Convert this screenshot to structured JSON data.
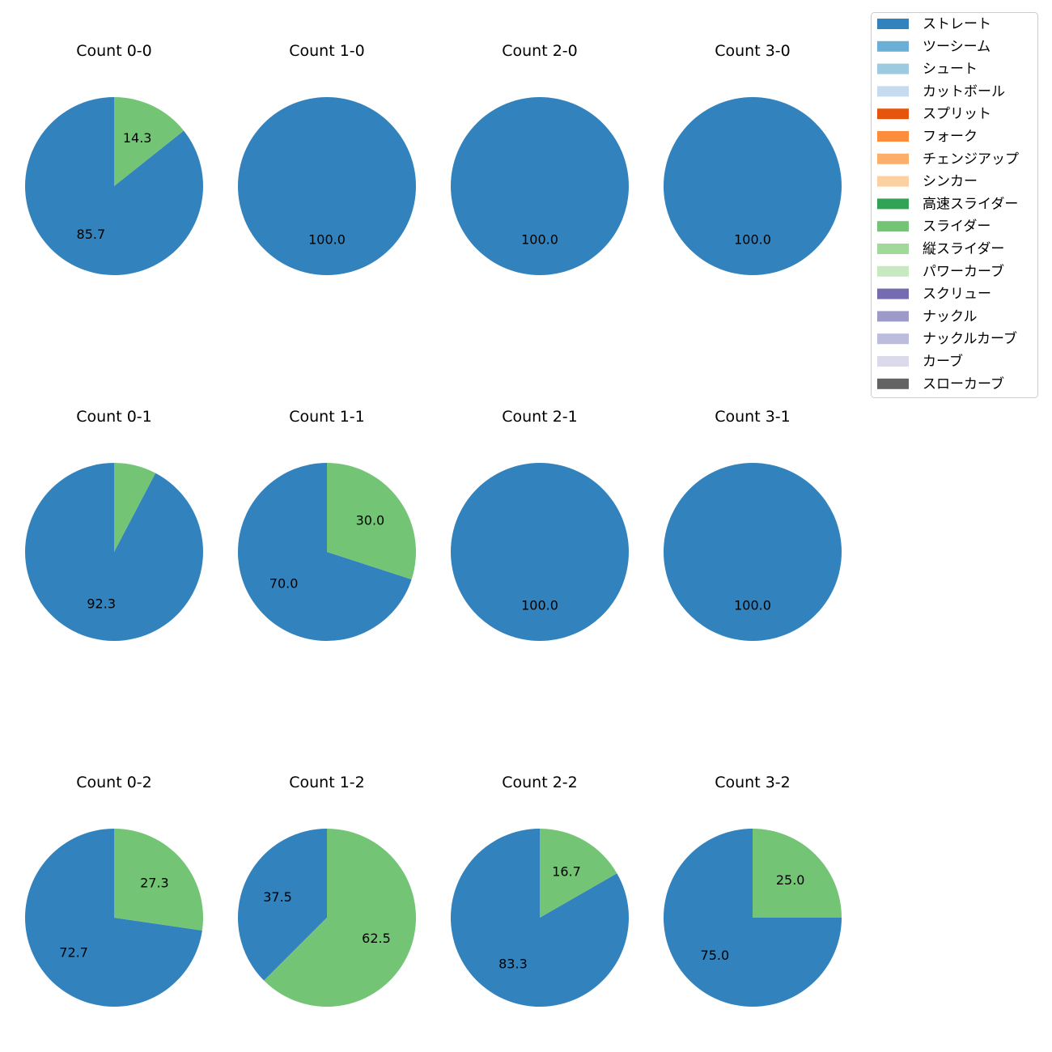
{
  "legend": {
    "items": [
      {
        "label": "ストレート",
        "color": "#3182bd"
      },
      {
        "label": "ツーシーム",
        "color": "#6baed6"
      },
      {
        "label": "シュート",
        "color": "#9ecae1"
      },
      {
        "label": "カットボール",
        "color": "#c6dbef"
      },
      {
        "label": "スプリット",
        "color": "#e6550d"
      },
      {
        "label": "フォーク",
        "color": "#fd8d3c"
      },
      {
        "label": "チェンジアップ",
        "color": "#fdae6b"
      },
      {
        "label": "シンカー",
        "color": "#fdd0a2"
      },
      {
        "label": "高速スライダー",
        "color": "#31a354"
      },
      {
        "label": "スライダー",
        "color": "#74c476"
      },
      {
        "label": "縦スライダー",
        "color": "#a1d99b"
      },
      {
        "label": "パワーカーブ",
        "color": "#c7e9c0"
      },
      {
        "label": "スクリュー",
        "color": "#756bb1"
      },
      {
        "label": "ナックル",
        "color": "#9e9ac8"
      },
      {
        "label": "ナックルカーブ",
        "color": "#bcbddc"
      },
      {
        "label": "カーブ",
        "color": "#dadaeb"
      },
      {
        "label": "スローカーブ",
        "color": "#636363"
      }
    ]
  },
  "chart_data": [
    {
      "type": "pie",
      "title": "Count 0-0",
      "slices": [
        {
          "label": "ストレート",
          "value": 85.7,
          "color": "#3182bd",
          "text": "85.7"
        },
        {
          "label": "スライダー",
          "value": 14.3,
          "color": "#74c476",
          "text": "14.3"
        }
      ]
    },
    {
      "type": "pie",
      "title": "Count 1-0",
      "slices": [
        {
          "label": "ストレート",
          "value": 100.0,
          "color": "#3182bd",
          "text": "100.0"
        }
      ]
    },
    {
      "type": "pie",
      "title": "Count 2-0",
      "slices": [
        {
          "label": "ストレート",
          "value": 100.0,
          "color": "#3182bd",
          "text": "100.0"
        }
      ]
    },
    {
      "type": "pie",
      "title": "Count 3-0",
      "slices": [
        {
          "label": "ストレート",
          "value": 100.0,
          "color": "#3182bd",
          "text": "100.0"
        }
      ]
    },
    {
      "type": "pie",
      "title": "Count 0-1",
      "slices": [
        {
          "label": "ストレート",
          "value": 92.3,
          "color": "#3182bd",
          "text": "92.3"
        },
        {
          "label": "スライダー",
          "value": 7.7,
          "color": "#74c476",
          "text": ""
        }
      ]
    },
    {
      "type": "pie",
      "title": "Count 1-1",
      "slices": [
        {
          "label": "ストレート",
          "value": 70.0,
          "color": "#3182bd",
          "text": "70.0"
        },
        {
          "label": "スライダー",
          "value": 30.0,
          "color": "#74c476",
          "text": "30.0"
        }
      ]
    },
    {
      "type": "pie",
      "title": "Count 2-1",
      "slices": [
        {
          "label": "ストレート",
          "value": 100.0,
          "color": "#3182bd",
          "text": "100.0"
        }
      ]
    },
    {
      "type": "pie",
      "title": "Count 3-1",
      "slices": [
        {
          "label": "ストレート",
          "value": 100.0,
          "color": "#3182bd",
          "text": "100.0"
        }
      ]
    },
    {
      "type": "pie",
      "title": "Count 0-2",
      "slices": [
        {
          "label": "ストレート",
          "value": 72.7,
          "color": "#3182bd",
          "text": "72.7"
        },
        {
          "label": "スライダー",
          "value": 27.3,
          "color": "#74c476",
          "text": "27.3"
        }
      ]
    },
    {
      "type": "pie",
      "title": "Count 1-2",
      "slices": [
        {
          "label": "ストレート",
          "value": 37.5,
          "color": "#3182bd",
          "text": "37.5"
        },
        {
          "label": "スライダー",
          "value": 62.5,
          "color": "#74c476",
          "text": "62.5"
        }
      ]
    },
    {
      "type": "pie",
      "title": "Count 2-2",
      "slices": [
        {
          "label": "ストレート",
          "value": 83.3,
          "color": "#3182bd",
          "text": "83.3"
        },
        {
          "label": "スライダー",
          "value": 16.7,
          "color": "#74c476",
          "text": "16.7"
        }
      ]
    },
    {
      "type": "pie",
      "title": "Count 3-2",
      "slices": [
        {
          "label": "ストレート",
          "value": 75.0,
          "color": "#3182bd",
          "text": "75.0"
        },
        {
          "label": "スライダー",
          "value": 25.0,
          "color": "#74c476",
          "text": "25.0"
        }
      ]
    }
  ]
}
